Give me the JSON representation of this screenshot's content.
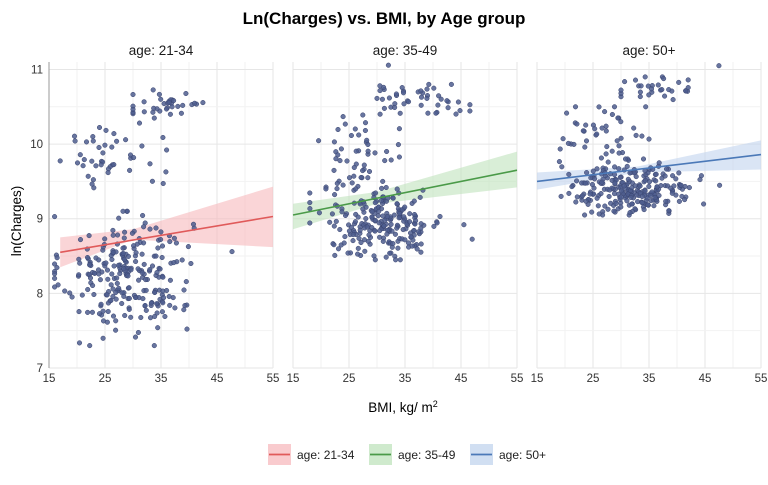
{
  "chart_data": {
    "type": "scatter",
    "title": "Ln(Charges) vs. BMI, by Age group",
    "xlabel": "BMI, kg/ m",
    "xlabel_superscript": "2",
    "ylabel": "ln(Charges)",
    "xlim": [
      15,
      55
    ],
    "ylim": [
      7,
      11.1
    ],
    "x_ticks": [
      "15",
      "25",
      "35",
      "45",
      "55"
    ],
    "y_ticks": [
      "7",
      "8",
      "9",
      "10",
      "11"
    ],
    "grid": true,
    "legend_position": "bottom",
    "point_color": "#4e5d8e",
    "panels": [
      {
        "label": "age: 21-34",
        "color": "#e05a5a",
        "band_color": "#f7b9bd",
        "fit": {
          "x": [
            17,
            55
          ],
          "y": [
            8.55,
            9.03
          ]
        },
        "band_lower": [
          [
            17,
            8.35
          ],
          [
            30,
            8.72
          ],
          [
            55,
            8.62
          ]
        ],
        "band_upper": [
          [
            17,
            8.75
          ],
          [
            30,
            8.86
          ],
          [
            55,
            9.43
          ]
        ],
        "clusters": [
          {
            "n": 250,
            "x_mean": 29,
            "x_sd": 5.8,
            "y_mean": 8.25,
            "y_sd": 0.4,
            "x_min": 16,
            "x_max": 50,
            "y_min": 7.3,
            "y_max": 9.1
          },
          {
            "n": 45,
            "x_mean": 26,
            "x_sd": 4.5,
            "y_mean": 9.85,
            "y_sd": 0.22,
            "x_min": 17,
            "x_max": 36,
            "y_min": 9.3,
            "y_max": 10.4
          },
          {
            "n": 35,
            "x_mean": 36,
            "x_sd": 4,
            "y_mean": 10.55,
            "y_sd": 0.15,
            "x_min": 30,
            "x_max": 53,
            "y_min": 10.3,
            "y_max": 11
          }
        ]
      },
      {
        "label": "age: 35-49",
        "color": "#4a9a48",
        "band_color": "#bfe3bc",
        "fit": {
          "x": [
            15,
            55
          ],
          "y": [
            9.05,
            9.65
          ]
        },
        "band_lower": [
          [
            15,
            8.86
          ],
          [
            30,
            9.2
          ],
          [
            55,
            9.42
          ]
        ],
        "band_upper": [
          [
            15,
            9.2
          ],
          [
            30,
            9.36
          ],
          [
            55,
            9.9
          ]
        ],
        "clusters": [
          {
            "n": 230,
            "x_mean": 31,
            "x_sd": 5.5,
            "y_mean": 8.95,
            "y_sd": 0.25,
            "x_min": 18,
            "x_max": 47,
            "y_min": 8.45,
            "y_max": 9.55
          },
          {
            "n": 45,
            "x_mean": 27,
            "x_sd": 4,
            "y_mean": 9.95,
            "y_sd": 0.25,
            "x_min": 18,
            "x_max": 34,
            "y_min": 9.4,
            "y_max": 10.4
          },
          {
            "n": 45,
            "x_mean": 37,
            "x_sd": 4.5,
            "y_mean": 10.6,
            "y_sd": 0.1,
            "x_min": 30,
            "x_max": 48,
            "y_min": 10.4,
            "y_max": 10.8
          },
          {
            "n": 1,
            "x_mean": 32,
            "x_sd": 0.1,
            "y_mean": 11.05,
            "y_sd": 0.01,
            "x_min": 31,
            "x_max": 33,
            "y_min": 11,
            "y_max": 11.1
          }
        ]
      },
      {
        "label": "age: 50+",
        "color": "#4b79b8",
        "band_color": "#c2d4ee",
        "fit": {
          "x": [
            15,
            55
          ],
          "y": [
            9.5,
            9.86
          ]
        },
        "band_lower": [
          [
            15,
            9.39
          ],
          [
            33,
            9.62
          ],
          [
            55,
            9.66
          ]
        ],
        "band_upper": [
          [
            15,
            9.62
          ],
          [
            33,
            9.7
          ],
          [
            55,
            10.05
          ]
        ],
        "clusters": [
          {
            "n": 250,
            "x_mean": 32,
            "x_sd": 5.5,
            "y_mean": 9.4,
            "y_sd": 0.17,
            "x_min": 18,
            "x_max": 48,
            "y_min": 9.05,
            "y_max": 9.8
          },
          {
            "n": 45,
            "x_mean": 27,
            "x_sd": 4,
            "y_mean": 10.1,
            "y_sd": 0.25,
            "x_min": 19,
            "x_max": 35,
            "y_min": 9.6,
            "y_max": 10.5
          },
          {
            "n": 30,
            "x_mean": 36,
            "x_sd": 4,
            "y_mean": 10.75,
            "y_sd": 0.1,
            "x_min": 30,
            "x_max": 42,
            "y_min": 10.4,
            "y_max": 10.9
          },
          {
            "n": 1,
            "x_mean": 47.5,
            "x_sd": 0.1,
            "y_mean": 11.05,
            "y_sd": 0.01,
            "x_min": 47,
            "x_max": 48,
            "y_min": 11,
            "y_max": 11.1
          }
        ]
      }
    ]
  }
}
